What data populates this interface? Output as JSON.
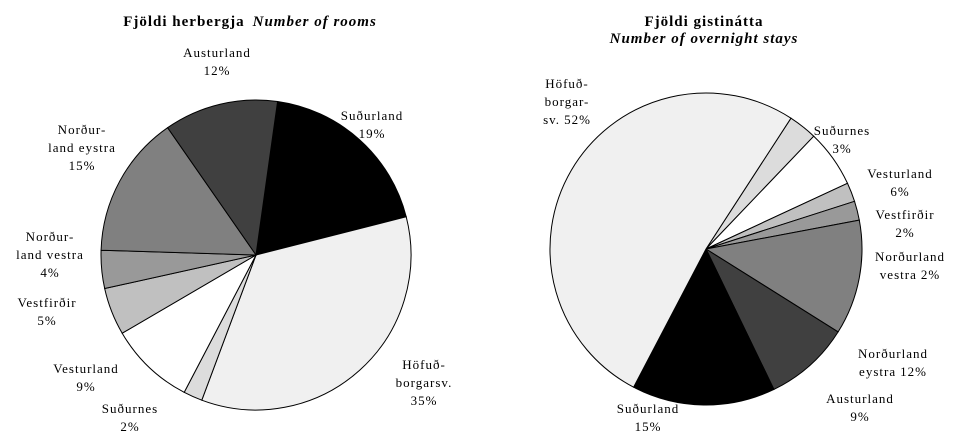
{
  "chart_data": [
    {
      "type": "pie",
      "title": "Fjöldi herbergja",
      "subtitle": "Number of rooms",
      "categories": [
        "Suðurland",
        "Höfuð-\nborgarsv.",
        "Suðurnes",
        "Vesturland",
        "Vestfirðir",
        "Norður-\nland vestra",
        "Norður-\nland eystra",
        "Austurland"
      ],
      "values": [
        19,
        35,
        2,
        9,
        5,
        4,
        15,
        12
      ],
      "value_labels": [
        "19%",
        "35%",
        "2%",
        "9%",
        "5%",
        "4%",
        "15%",
        "12%"
      ],
      "colors": [
        "#000000",
        "#f0f0f0",
        "#dcdcdc",
        "#ffffff",
        "#c0c0c0",
        "#999999",
        "#808080",
        "#404040"
      ]
    },
    {
      "type": "pie",
      "title": "Fjöldi gistinátta",
      "subtitle": "Number of overnight stays",
      "categories": [
        "Suðurnes",
        "Vesturland",
        "Vestfirðir",
        "Norðurland\nvestra",
        "Norðurland\neystra",
        "Austurland",
        "Suðurland",
        "Höfuð-\nborgar-\nsv."
      ],
      "values": [
        3,
        6,
        2,
        2,
        12,
        9,
        15,
        52
      ],
      "value_labels": [
        "3%",
        "6%",
        "2%",
        "2%",
        "12%",
        "9%",
        "15%",
        "52%"
      ],
      "colors": [
        "#dcdcdc",
        "#ffffff",
        "#c0c0c0",
        "#999999",
        "#808080",
        "#404040",
        "#000000",
        "#f0f0f0"
      ]
    }
  ]
}
